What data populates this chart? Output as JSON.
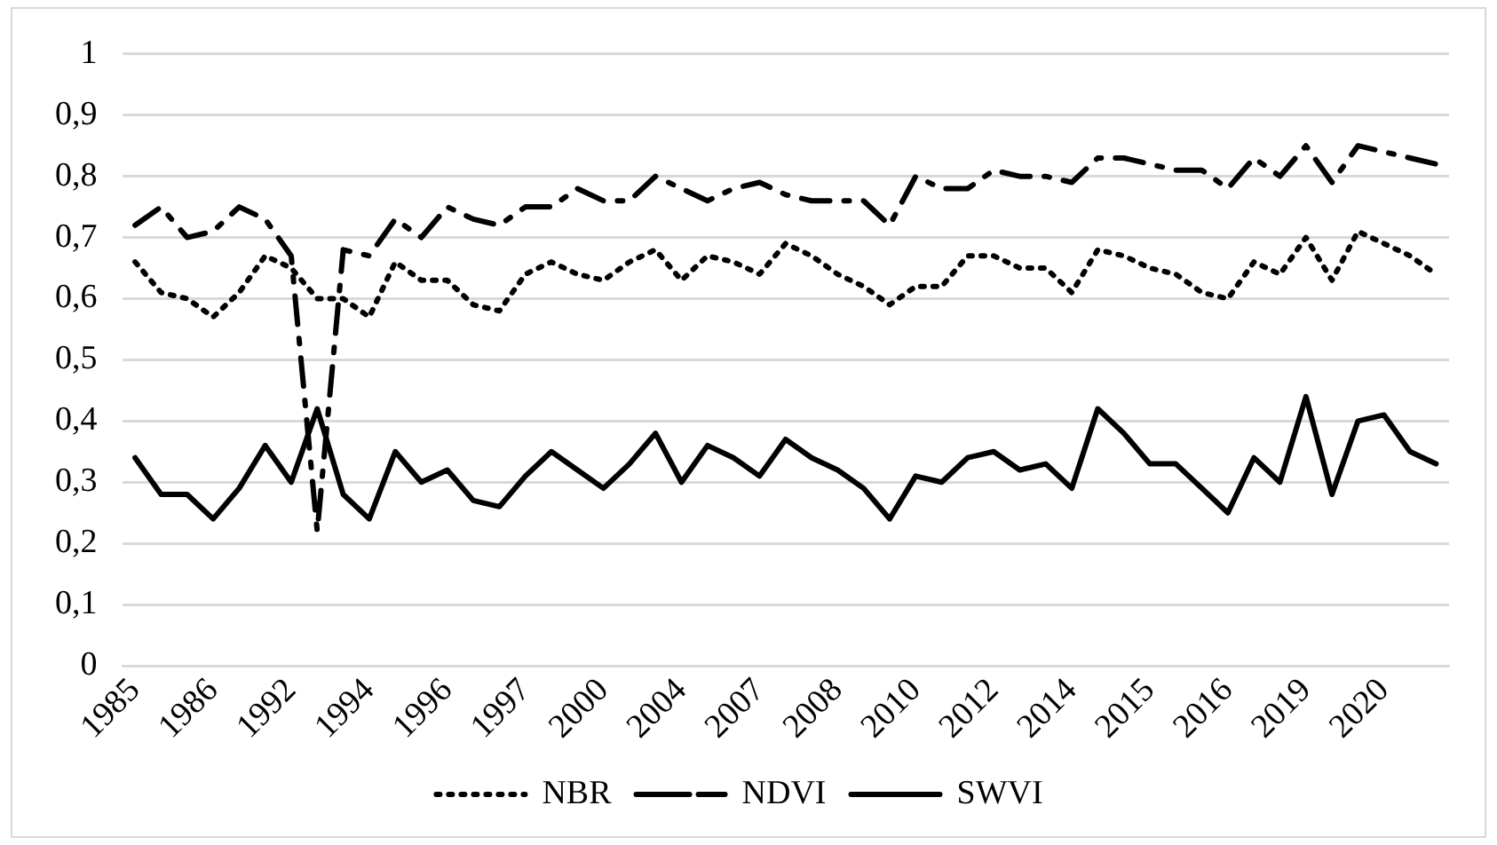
{
  "chart_data": {
    "type": "line",
    "categories": [
      "1985",
      null,
      null,
      "1986",
      null,
      null,
      "1992",
      null,
      null,
      "1994",
      null,
      null,
      "1996",
      null,
      null,
      "1997",
      null,
      null,
      "2000",
      null,
      null,
      "2004",
      null,
      null,
      "2007",
      null,
      null,
      "2008",
      null,
      null,
      "2010",
      null,
      null,
      "2012",
      null,
      null,
      "2014",
      null,
      null,
      "2015",
      null,
      null,
      "2016",
      null,
      null,
      "2019",
      null,
      null,
      "2020",
      null,
      null
    ],
    "series": [
      {
        "name": "NBR",
        "color": "#000000",
        "line_style": "dotted",
        "values": [
          0.66,
          0.61,
          0.6,
          0.57,
          0.61,
          0.67,
          0.65,
          0.6,
          0.6,
          0.57,
          0.66,
          0.63,
          0.63,
          0.59,
          0.58,
          0.64,
          0.66,
          0.64,
          0.63,
          0.66,
          0.68,
          0.63,
          0.67,
          0.66,
          0.64,
          0.69,
          0.67,
          0.64,
          0.62,
          0.59,
          0.62,
          0.62,
          0.67,
          0.67,
          0.65,
          0.65,
          0.61,
          0.68,
          0.67,
          0.65,
          0.64,
          0.61,
          0.6,
          0.66,
          0.64,
          0.7,
          0.63,
          0.71,
          0.69,
          0.67,
          0.64
        ]
      },
      {
        "name": "NDVI",
        "color": "#000000",
        "line_style": "dashed",
        "values": [
          0.72,
          0.75,
          0.7,
          0.71,
          0.75,
          0.73,
          0.67,
          0.22,
          0.68,
          0.67,
          0.73,
          0.7,
          0.75,
          0.73,
          0.72,
          0.75,
          0.75,
          0.78,
          0.76,
          0.76,
          0.8,
          0.78,
          0.76,
          0.78,
          0.79,
          0.77,
          0.76,
          0.76,
          0.76,
          0.72,
          0.8,
          0.78,
          0.78,
          0.81,
          0.8,
          0.8,
          0.79,
          0.83,
          0.83,
          0.82,
          0.81,
          0.81,
          0.78,
          0.83,
          0.8,
          0.85,
          0.79,
          0.85,
          0.84,
          0.83,
          0.82
        ]
      },
      {
        "name": "SWVI",
        "color": "#000000",
        "line_style": "solid",
        "values": [
          0.34,
          0.28,
          0.28,
          0.24,
          0.29,
          0.36,
          0.3,
          0.42,
          0.28,
          0.24,
          0.35,
          0.3,
          0.32,
          0.27,
          0.26,
          0.31,
          0.35,
          0.32,
          0.29,
          0.33,
          0.38,
          0.3,
          0.36,
          0.34,
          0.31,
          0.37,
          0.34,
          0.32,
          0.29,
          0.24,
          0.31,
          0.3,
          0.34,
          0.35,
          0.32,
          0.33,
          0.29,
          0.42,
          0.38,
          0.33,
          0.33,
          0.29,
          0.25,
          0.34,
          0.3,
          0.44,
          0.28,
          0.4,
          0.41,
          0.35,
          0.33
        ]
      }
    ],
    "ylim": [
      0,
      1
    ],
    "yticks": [
      {
        "value": 0,
        "label": "0"
      },
      {
        "value": 0.1,
        "label": "0,1"
      },
      {
        "value": 0.2,
        "label": "0,2"
      },
      {
        "value": 0.3,
        "label": "0,3"
      },
      {
        "value": 0.4,
        "label": "0,4"
      },
      {
        "value": 0.5,
        "label": "0,5"
      },
      {
        "value": 0.6,
        "label": "0,6"
      },
      {
        "value": 0.7,
        "label": "0,7"
      },
      {
        "value": 0.8,
        "label": "0,8"
      },
      {
        "value": 0.9,
        "label": "0,9"
      },
      {
        "value": 1,
        "label": "1"
      }
    ],
    "grid": "y",
    "legend": "bottom",
    "marker": "none"
  }
}
